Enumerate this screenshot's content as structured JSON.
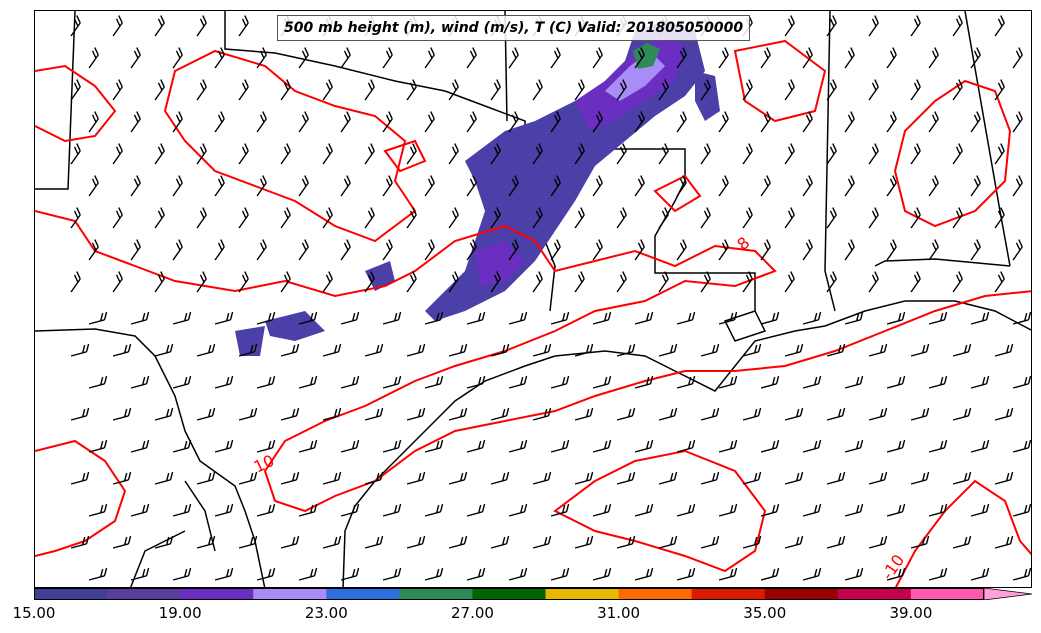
{
  "title": "500 mb height (m), wind (m/s), T (C) Valid: 201805050000",
  "contour_labels": [
    "10",
    "8",
    "-10"
  ],
  "colorbar": {
    "ticks": [
      "15.00",
      "19.00",
      "23.00",
      "27.00",
      "31.00",
      "35.00",
      "39.00"
    ],
    "colors": [
      "#3f3f96",
      "#5a3c9c",
      "#6a2fc0",
      "#a98cf5",
      "#2e6fe0",
      "#2e8b57",
      "#006400",
      "#e6b800",
      "#ff6a00",
      "#dd1a00",
      "#990000",
      "#c8004e",
      "#ff59b4",
      "#ffa0d8"
    ]
  },
  "colors": {
    "contour": "#ff0000",
    "boundary": "#000000",
    "barb": "#000000"
  }
}
